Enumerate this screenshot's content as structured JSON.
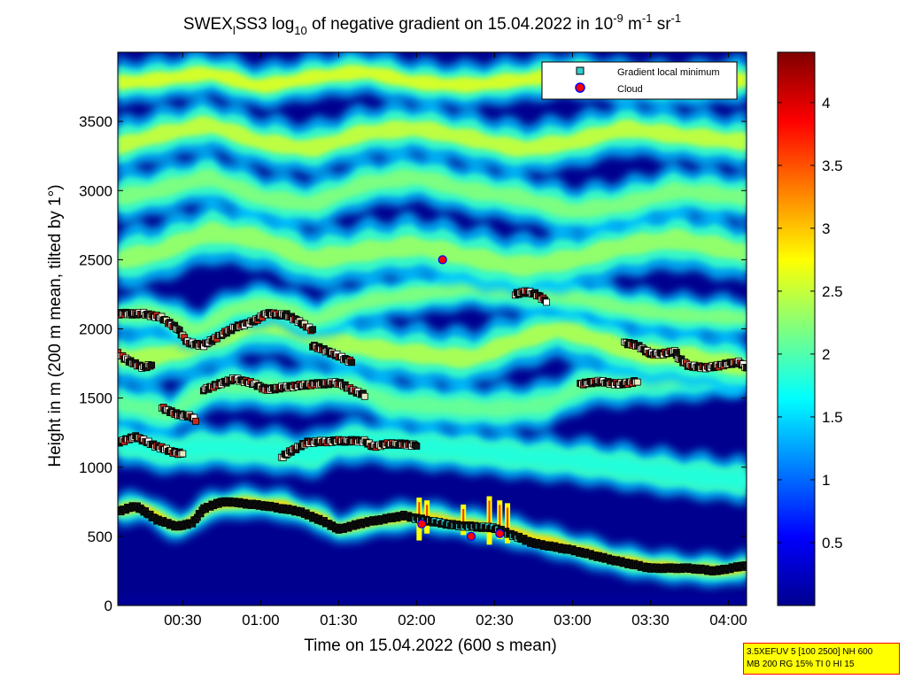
{
  "chart_data": {
    "type": "heatmap",
    "title": {
      "prefix": "SWEX",
      "sub1": "l",
      "mid1": "SS3 log",
      "sub2": "10",
      "mid2": " of negative gradient on 15.04.2022 in 10",
      "sup1": "-9",
      "mid3": " m",
      "sup2": "-1",
      "mid4": " sr",
      "sup3": "-1"
    },
    "xlabel": "Time on 15.04.2022 (600 s mean)",
    "ylabel": "Height in m (200 m mean, tilted by 1°)",
    "x_ticks": [
      {
        "label": "00:30",
        "minutes": 30
      },
      {
        "label": "01:00",
        "minutes": 60
      },
      {
        "label": "01:30",
        "minutes": 90
      },
      {
        "label": "02:00",
        "minutes": 120
      },
      {
        "label": "02:30",
        "minutes": 150
      },
      {
        "label": "03:00",
        "minutes": 180
      },
      {
        "label": "03:30",
        "minutes": 210
      },
      {
        "label": "04:00",
        "minutes": 240
      }
    ],
    "xlim_minutes": [
      5,
      247
    ],
    "y_ticks": [
      "0",
      "500",
      "1000",
      "1500",
      "2000",
      "2500",
      "3000",
      "3500"
    ],
    "ylim": [
      0,
      4000
    ],
    "colorbar": {
      "ticks": [
        "0.5",
        "1",
        "1.5",
        "2",
        "2.5",
        "3",
        "3.5",
        "4"
      ],
      "range": [
        0,
        4.4
      ],
      "colormap": "jet"
    },
    "legend": {
      "placement": "top-right",
      "entries": [
        {
          "label": "Gradient local minimum",
          "marker": "square",
          "color": "#33cccc"
        },
        {
          "label": "Cloud",
          "marker": "circle",
          "color": "#ff0000"
        }
      ]
    },
    "layers": [
      {
        "base": [
          [
            5,
            690
          ],
          [
            15,
            720
          ],
          [
            25,
            590
          ],
          [
            30,
            570
          ],
          [
            40,
            720
          ],
          [
            55,
            750
          ],
          [
            70,
            720
          ],
          [
            85,
            620
          ],
          [
            90,
            550
          ],
          [
            100,
            600
          ],
          [
            120,
            650
          ],
          [
            140,
            590
          ],
          [
            160,
            520
          ],
          [
            180,
            420
          ],
          [
            200,
            320
          ],
          [
            220,
            270
          ],
          [
            240,
            250
          ],
          [
            247,
            280
          ]
        ],
        "thickness": 120,
        "level": 2.9
      },
      {
        "base": [
          [
            5,
            1190
          ],
          [
            15,
            1150
          ],
          [
            25,
            1110
          ],
          [
            40,
            1150
          ],
          [
            55,
            1130
          ],
          [
            70,
            1110
          ],
          [
            80,
            1080
          ],
          [
            90,
            1180
          ],
          [
            100,
            1190
          ],
          [
            110,
            1170
          ],
          [
            120,
            1150
          ],
          [
            140,
            1120
          ],
          [
            160,
            1080
          ],
          [
            180,
            1050
          ],
          [
            200,
            1000
          ],
          [
            220,
            950
          ],
          [
            247,
            900
          ]
        ],
        "thickness": 170,
        "level": 1.8
      },
      {
        "base": [
          [
            5,
            1460
          ],
          [
            15,
            1430
          ],
          [
            25,
            1380
          ],
          [
            35,
            1520
          ],
          [
            45,
            1600
          ],
          [
            60,
            1580
          ],
          [
            75,
            1560
          ],
          [
            95,
            1590
          ],
          [
            110,
            1460
          ],
          [
            130,
            1440
          ],
          [
            150,
            1420
          ],
          [
            170,
            1450
          ],
          [
            185,
            1600
          ],
          [
            200,
            1610
          ],
          [
            220,
            1640
          ],
          [
            240,
            1680
          ],
          [
            247,
            1700
          ]
        ],
        "thickness": 180,
        "level": 2.1
      },
      {
        "base": [
          [
            5,
            1800
          ],
          [
            15,
            1780
          ],
          [
            30,
            1850
          ],
          [
            45,
            1940
          ],
          [
            60,
            2050
          ],
          [
            75,
            1980
          ],
          [
            90,
            1900
          ],
          [
            105,
            1850
          ],
          [
            120,
            1820
          ],
          [
            140,
            1780
          ],
          [
            160,
            1920
          ],
          [
            175,
            2000
          ],
          [
            190,
            1920
          ],
          [
            205,
            1820
          ],
          [
            225,
            1800
          ],
          [
            247,
            1720
          ]
        ],
        "thickness": 220,
        "level": 2.4
      },
      {
        "base": [
          [
            5,
            2100
          ],
          [
            20,
            2120
          ],
          [
            35,
            1980
          ],
          [
            50,
            2150
          ],
          [
            65,
            2180
          ],
          [
            80,
            2060
          ],
          [
            100,
            2200
          ],
          [
            120,
            2250
          ],
          [
            140,
            2300
          ],
          [
            160,
            2260
          ],
          [
            180,
            2230
          ],
          [
            200,
            2150
          ],
          [
            220,
            2100
          ],
          [
            247,
            2080
          ]
        ],
        "thickness": 160,
        "level": 2.2
      },
      {
        "base": [
          [
            5,
            2500
          ],
          [
            20,
            2550
          ],
          [
            40,
            2700
          ],
          [
            60,
            2650
          ],
          [
            80,
            2500
          ],
          [
            100,
            2560
          ],
          [
            120,
            2600
          ],
          [
            140,
            2520
          ],
          [
            160,
            2450
          ],
          [
            180,
            2500
          ],
          [
            200,
            2600
          ],
          [
            220,
            2650
          ],
          [
            247,
            2550
          ]
        ],
        "thickness": 230,
        "level": 2.3
      },
      {
        "base": [
          [
            5,
            2950
          ],
          [
            20,
            3000
          ],
          [
            40,
            3100
          ],
          [
            60,
            2950
          ],
          [
            80,
            2900
          ],
          [
            100,
            3050
          ],
          [
            120,
            3100
          ],
          [
            140,
            3000
          ],
          [
            160,
            2950
          ],
          [
            180,
            2850
          ],
          [
            200,
            2900
          ],
          [
            220,
            3000
          ],
          [
            247,
            2950
          ]
        ],
        "thickness": 190,
        "level": 2.2
      },
      {
        "base": [
          [
            5,
            3320
          ],
          [
            20,
            3400
          ],
          [
            40,
            3480
          ],
          [
            60,
            3350
          ],
          [
            80,
            3300
          ],
          [
            100,
            3420
          ],
          [
            120,
            3450
          ],
          [
            140,
            3380
          ],
          [
            160,
            3300
          ],
          [
            180,
            3350
          ],
          [
            200,
            3450
          ],
          [
            220,
            3400
          ],
          [
            247,
            3350
          ]
        ],
        "thickness": 200,
        "level": 2.5
      },
      {
        "base": [
          [
            5,
            3780
          ],
          [
            20,
            3800
          ],
          [
            40,
            3850
          ],
          [
            60,
            3750
          ],
          [
            80,
            3820
          ],
          [
            100,
            3860
          ],
          [
            120,
            3780
          ],
          [
            140,
            3760
          ],
          [
            160,
            3800
          ],
          [
            180,
            3840
          ],
          [
            200,
            3780
          ],
          [
            220,
            3760
          ],
          [
            247,
            3800
          ]
        ],
        "thickness": 170,
        "level": 2.6
      }
    ],
    "low_band": {
      "from": 0,
      "to": 330,
      "level": 0.05
    },
    "spikes": [
      {
        "minutes": 121,
        "bottom": 470,
        "top": 780
      },
      {
        "minutes": 124,
        "bottom": 520,
        "top": 760
      },
      {
        "minutes": 138,
        "bottom": 510,
        "top": 730
      },
      {
        "minutes": 148,
        "bottom": 440,
        "top": 790
      },
      {
        "minutes": 152,
        "bottom": 480,
        "top": 760
      },
      {
        "minutes": 155,
        "bottom": 450,
        "top": 740
      }
    ],
    "minima_tracks": [
      {
        "t0": 5,
        "t1": 50,
        "points": [
          [
            5,
            680
          ],
          [
            12,
            720
          ],
          [
            20,
            620
          ],
          [
            28,
            570
          ],
          [
            34,
            600
          ],
          [
            38,
            700
          ],
          [
            45,
            750
          ],
          [
            50,
            745
          ]
        ]
      },
      {
        "t0": 50,
        "t1": 247,
        "points": [
          [
            50,
            745
          ],
          [
            62,
            720
          ],
          [
            75,
            680
          ],
          [
            85,
            600
          ],
          [
            90,
            550
          ],
          [
            100,
            600
          ],
          [
            115,
            650
          ],
          [
            125,
            610
          ],
          [
            135,
            580
          ],
          [
            150,
            560
          ],
          [
            165,
            450
          ],
          [
            180,
            400
          ],
          [
            195,
            330
          ],
          [
            210,
            270
          ],
          [
            225,
            270
          ],
          [
            235,
            250
          ],
          [
            247,
            290
          ]
        ]
      },
      {
        "t0": 5,
        "t1": 30,
        "points": [
          [
            5,
            1180
          ],
          [
            12,
            1220
          ],
          [
            20,
            1150
          ],
          [
            28,
            1100
          ],
          [
            30,
            1100
          ]
        ]
      },
      {
        "t0": 68,
        "t1": 120,
        "points": [
          [
            68,
            1070
          ],
          [
            72,
            1120
          ],
          [
            78,
            1180
          ],
          [
            90,
            1190
          ],
          [
            100,
            1190
          ],
          [
            103,
            1150
          ],
          [
            110,
            1170
          ],
          [
            120,
            1160
          ]
        ]
      },
      {
        "t0": 38,
        "t1": 90,
        "points": [
          [
            38,
            1560
          ],
          [
            44,
            1600
          ],
          [
            50,
            1640
          ],
          [
            58,
            1600
          ],
          [
            62,
            1560
          ],
          [
            70,
            1580
          ],
          [
            80,
            1600
          ],
          [
            90,
            1610
          ]
        ]
      },
      {
        "t0": 90,
        "t1": 100,
        "points": [
          [
            90,
            1610
          ],
          [
            95,
            1560
          ],
          [
            100,
            1520
          ]
        ]
      },
      {
        "t0": 22,
        "t1": 35,
        "points": [
          [
            22,
            1430
          ],
          [
            28,
            1380
          ],
          [
            33,
            1370
          ],
          [
            35,
            1340
          ]
        ]
      },
      {
        "t0": 183,
        "t1": 205,
        "points": [
          [
            183,
            1600
          ],
          [
            190,
            1620
          ],
          [
            198,
            1600
          ],
          [
            205,
            1620
          ]
        ]
      },
      {
        "t0": 5,
        "t1": 18,
        "points": [
          [
            5,
            1820
          ],
          [
            10,
            1760
          ],
          [
            15,
            1720
          ],
          [
            18,
            1740
          ]
        ]
      },
      {
        "t0": 5,
        "t1": 45,
        "points": [
          [
            5,
            2110
          ],
          [
            15,
            2110
          ],
          [
            22,
            2080
          ],
          [
            28,
            2000
          ],
          [
            32,
            1900
          ],
          [
            38,
            1880
          ],
          [
            45,
            1960
          ]
        ]
      },
      {
        "t0": 45,
        "t1": 80,
        "points": [
          [
            45,
            1960
          ],
          [
            50,
            2010
          ],
          [
            58,
            2060
          ],
          [
            62,
            2110
          ],
          [
            70,
            2100
          ],
          [
            75,
            2050
          ],
          [
            80,
            1990
          ]
        ]
      },
      {
        "t0": 80,
        "t1": 95,
        "points": [
          [
            80,
            1880
          ],
          [
            88,
            1820
          ],
          [
            95,
            1760
          ]
        ]
      },
      {
        "t0": 158,
        "t1": 170,
        "points": [
          [
            158,
            2250
          ],
          [
            162,
            2270
          ],
          [
            166,
            2250
          ],
          [
            170,
            2200
          ]
        ]
      },
      {
        "t0": 200,
        "t1": 220,
        "points": [
          [
            200,
            1900
          ],
          [
            205,
            1880
          ],
          [
            210,
            1820
          ],
          [
            215,
            1820
          ],
          [
            220,
            1840
          ]
        ]
      },
      {
        "t0": 220,
        "t1": 247,
        "points": [
          [
            220,
            1800
          ],
          [
            225,
            1730
          ],
          [
            232,
            1720
          ],
          [
            238,
            1740
          ],
          [
            244,
            1760
          ],
          [
            247,
            1720
          ]
        ]
      }
    ],
    "clouds": [
      {
        "minutes": 130,
        "height": 2500
      },
      {
        "minutes": 122,
        "height": 590
      },
      {
        "minutes": 141,
        "height": 500
      },
      {
        "minutes": 152,
        "height": 520
      }
    ]
  },
  "info_box": {
    "line1": "3.5XEFUV 5 [100 2500] NH 600",
    "line2": "MB 200 RG 15% TI 0 HI 15"
  }
}
